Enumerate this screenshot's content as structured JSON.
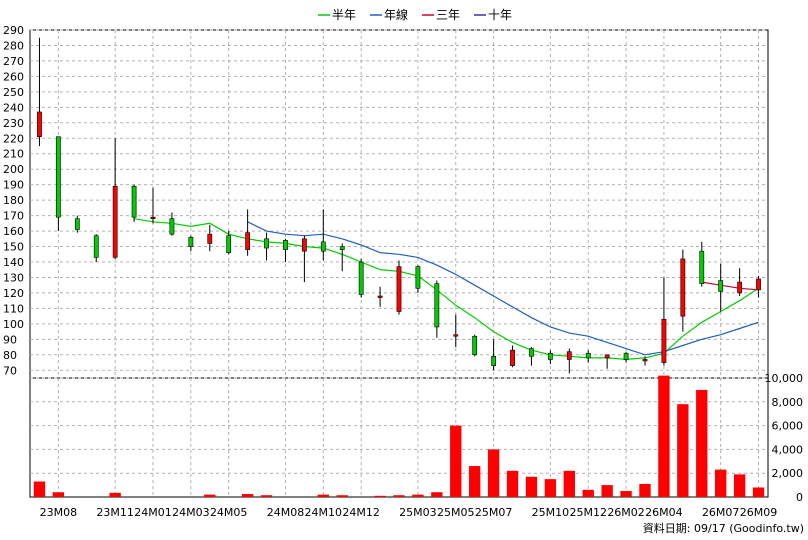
{
  "chart_data": {
    "type": "candlestick",
    "legend": [
      {
        "name": "半年",
        "color": "#00cc00"
      },
      {
        "name": "年線",
        "color": "#1f5fbf"
      },
      {
        "name": "三年",
        "color": "#cc0033"
      },
      {
        "name": "十年",
        "color": "#3333aa"
      }
    ],
    "source_note": "資料日期: 09/17  (Goodinfo.tw)",
    "price_axis": {
      "min": 70,
      "max": 290,
      "step": 10,
      "side": "left"
    },
    "volume_axis": {
      "min": 0,
      "max": 10000,
      "ticks": [
        "0",
        "2,000",
        "4,000",
        "6,000",
        "8,000",
        "10,000"
      ],
      "side": "right"
    },
    "x_labels": [
      {
        "i": 1,
        "label": "23M08"
      },
      {
        "i": 4,
        "label": "23M11"
      },
      {
        "i": 6,
        "label": "24M01"
      },
      {
        "i": 8,
        "label": "24M03"
      },
      {
        "i": 10,
        "label": "24M05"
      },
      {
        "i": 13,
        "label": "24M08"
      },
      {
        "i": 15,
        "label": "24M10"
      },
      {
        "i": 17,
        "label": "24M12"
      },
      {
        "i": 20,
        "label": "25M03"
      },
      {
        "i": 22,
        "label": "25M05"
      },
      {
        "i": 24,
        "label": "25M07"
      },
      {
        "i": 27,
        "label": "25M10"
      },
      {
        "i": 29,
        "label": "25M12"
      },
      {
        "i": 31,
        "label": "26M02"
      },
      {
        "i": 33,
        "label": "26M04"
      },
      {
        "i": 36,
        "label": "26M07"
      },
      {
        "i": 38,
        "label": "26M09"
      }
    ],
    "candles": [
      {
        "o": 221,
        "c": 237,
        "h": 285,
        "l": 215
      },
      {
        "o": 221,
        "c": 169,
        "h": 221,
        "l": 160
      },
      {
        "o": 168,
        "c": 161,
        "h": 170,
        "l": 159
      },
      {
        "o": 157,
        "c": 143,
        "h": 158,
        "l": 140
      },
      {
        "o": 143,
        "c": 189,
        "h": 220,
        "l": 142
      },
      {
        "o": 189,
        "c": 169,
        "h": 190,
        "l": 166
      },
      {
        "o": 169,
        "c": 169,
        "h": 188,
        "l": 165
      },
      {
        "o": 168,
        "c": 158,
        "h": 172,
        "l": 157
      },
      {
        "o": 156,
        "c": 150,
        "h": 157,
        "l": 147
      },
      {
        "o": 152,
        "c": 158,
        "h": 164,
        "l": 147
      },
      {
        "o": 157,
        "c": 146,
        "h": 160,
        "l": 145
      },
      {
        "o": 148,
        "c": 159,
        "h": 174,
        "l": 144
      },
      {
        "o": 155,
        "c": 149,
        "h": 159,
        "l": 141
      },
      {
        "o": 154,
        "c": 148,
        "h": 155,
        "l": 140
      },
      {
        "o": 147,
        "c": 155,
        "h": 157,
        "l": 127
      },
      {
        "o": 153,
        "c": 147,
        "h": 174,
        "l": 141
      },
      {
        "o": 150,
        "c": 148,
        "h": 152,
        "l": 134
      },
      {
        "o": 140,
        "c": 119,
        "h": 142,
        "l": 117
      },
      {
        "o": 118,
        "c": 118,
        "h": 124,
        "l": 111
      },
      {
        "o": 108,
        "c": 137,
        "h": 141,
        "l": 106
      },
      {
        "o": 137,
        "c": 123,
        "h": 138,
        "l": 120
      },
      {
        "o": 126,
        "c": 98,
        "h": 128,
        "l": 91
      },
      {
        "o": 93,
        "c": 93,
        "h": 106,
        "l": 85
      },
      {
        "o": 92,
        "c": 80,
        "h": 93,
        "l": 79
      },
      {
        "o": 79,
        "c": 73,
        "h": 90,
        "l": 70
      },
      {
        "o": 73,
        "c": 83,
        "h": 86,
        "l": 72
      },
      {
        "o": 84,
        "c": 79,
        "h": 85,
        "l": 73
      },
      {
        "o": 81,
        "c": 77,
        "h": 83,
        "l": 74
      },
      {
        "o": 77,
        "c": 82,
        "h": 84,
        "l": 68
      },
      {
        "o": 81,
        "c": 78,
        "h": 83,
        "l": 75
      },
      {
        "o": 78,
        "c": 80,
        "h": 80,
        "l": 71
      },
      {
        "o": 81,
        "c": 77,
        "h": 82,
        "l": 75
      },
      {
        "o": 76,
        "c": 77,
        "h": 79,
        "l": 73
      },
      {
        "o": 75,
        "c": 103,
        "h": 130,
        "l": 73
      },
      {
        "o": 105,
        "c": 142,
        "h": 148,
        "l": 95
      },
      {
        "o": 147,
        "c": 126,
        "h": 153,
        "l": 124
      },
      {
        "o": 128,
        "c": 121,
        "h": 139,
        "l": 108
      },
      {
        "o": 120,
        "c": 127,
        "h": 136,
        "l": 118
      },
      {
        "o": 122,
        "c": 129,
        "h": 131,
        "l": 117
      }
    ],
    "volume": [
      1300,
      400,
      0,
      0,
      350,
      0,
      0,
      0,
      0,
      200,
      0,
      250,
      150,
      0,
      0,
      200,
      150,
      0,
      100,
      150,
      200,
      400,
      6000,
      2600,
      4000,
      2200,
      1700,
      1500,
      2200,
      600,
      1000,
      500,
      1100,
      10200,
      7800,
      9000,
      2300,
      1900,
      800
    ],
    "ma_half_year": [
      {
        "i": 5,
        "v": 168
      },
      {
        "i": 6,
        "v": 166
      },
      {
        "i": 7,
        "v": 165
      },
      {
        "i": 8,
        "v": 163
      },
      {
        "i": 9,
        "v": 165
      },
      {
        "i": 10,
        "v": 158
      },
      {
        "i": 11,
        "v": 155
      },
      {
        "i": 12,
        "v": 153
      },
      {
        "i": 13,
        "v": 152
      },
      {
        "i": 14,
        "v": 150
      },
      {
        "i": 15,
        "v": 149
      },
      {
        "i": 16,
        "v": 145
      },
      {
        "i": 17,
        "v": 140
      },
      {
        "i": 18,
        "v": 135
      },
      {
        "i": 19,
        "v": 134
      },
      {
        "i": 20,
        "v": 131
      },
      {
        "i": 21,
        "v": 122
      },
      {
        "i": 22,
        "v": 112
      },
      {
        "i": 23,
        "v": 104
      },
      {
        "i": 24,
        "v": 95
      },
      {
        "i": 25,
        "v": 88
      },
      {
        "i": 26,
        "v": 83
      },
      {
        "i": 27,
        "v": 80
      },
      {
        "i": 28,
        "v": 79
      },
      {
        "i": 29,
        "v": 78
      },
      {
        "i": 30,
        "v": 78
      },
      {
        "i": 31,
        "v": 77
      },
      {
        "i": 32,
        "v": 78
      },
      {
        "i": 33,
        "v": 81
      },
      {
        "i": 34,
        "v": 92
      },
      {
        "i": 35,
        "v": 101
      },
      {
        "i": 36,
        "v": 108
      },
      {
        "i": 37,
        "v": 115
      },
      {
        "i": 38,
        "v": 123
      }
    ],
    "ma_year": [
      {
        "i": 11,
        "v": 166
      },
      {
        "i": 12,
        "v": 160
      },
      {
        "i": 13,
        "v": 158
      },
      {
        "i": 14,
        "v": 157
      },
      {
        "i": 15,
        "v": 158
      },
      {
        "i": 16,
        "v": 155
      },
      {
        "i": 17,
        "v": 151
      },
      {
        "i": 18,
        "v": 146
      },
      {
        "i": 19,
        "v": 145
      },
      {
        "i": 20,
        "v": 143
      },
      {
        "i": 21,
        "v": 138
      },
      {
        "i": 22,
        "v": 132
      },
      {
        "i": 23,
        "v": 125
      },
      {
        "i": 24,
        "v": 118
      },
      {
        "i": 25,
        "v": 111
      },
      {
        "i": 26,
        "v": 104
      },
      {
        "i": 27,
        "v": 98
      },
      {
        "i": 28,
        "v": 94
      },
      {
        "i": 29,
        "v": 92
      },
      {
        "i": 30,
        "v": 88
      },
      {
        "i": 31,
        "v": 84
      },
      {
        "i": 32,
        "v": 80
      },
      {
        "i": 33,
        "v": 82
      },
      {
        "i": 34,
        "v": 86
      },
      {
        "i": 35,
        "v": 90
      },
      {
        "i": 36,
        "v": 93
      },
      {
        "i": 37,
        "v": 97
      },
      {
        "i": 38,
        "v": 101
      }
    ],
    "ma_three_year": [
      {
        "i": 35,
        "v": 127
      },
      {
        "i": 36,
        "v": 125
      },
      {
        "i": 37,
        "v": 123
      },
      {
        "i": 38,
        "v": 122
      }
    ],
    "ma_ten_year": []
  }
}
